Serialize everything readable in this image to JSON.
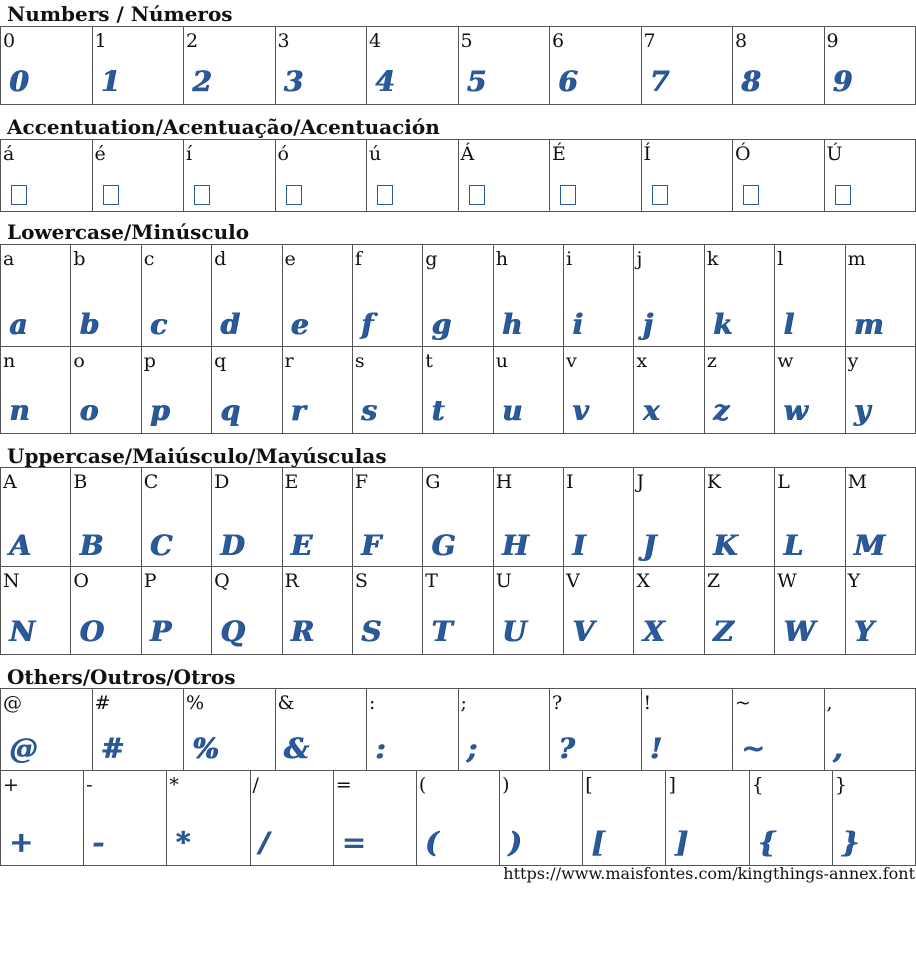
{
  "sections": [
    {
      "title": "Numbers / Números",
      "rows": [
        [
          "0",
          "1",
          "2",
          "3",
          "4",
          "5",
          "6",
          "7",
          "8",
          "9"
        ]
      ]
    },
    {
      "title": "Accentuation/Acentuação/Acentuación",
      "glyph_missing": true,
      "rows": [
        [
          "á",
          "é",
          "í",
          "ó",
          "ú",
          "Á",
          "É",
          "Í",
          "Ó",
          "Ú"
        ]
      ]
    },
    {
      "title": "Lowercase/Minúsculo",
      "rows": [
        [
          "a",
          "b",
          "c",
          "d",
          "e",
          "f",
          "g",
          "h",
          "i",
          "j",
          "k",
          "l",
          "m"
        ],
        [
          "n",
          "o",
          "p",
          "q",
          "r",
          "s",
          "t",
          "u",
          "v",
          "x",
          "z",
          "w",
          "y"
        ]
      ]
    },
    {
      "title": "Uppercase/Maiúsculo/Mayúsculas",
      "rows": [
        [
          "A",
          "B",
          "C",
          "D",
          "E",
          "F",
          "G",
          "H",
          "I",
          "J",
          "K",
          "L",
          "M"
        ],
        [
          "N",
          "O",
          "P",
          "Q",
          "R",
          "S",
          "T",
          "U",
          "V",
          "X",
          "Z",
          "W",
          "Y"
        ]
      ]
    },
    {
      "title": "Others/Outros/Otros",
      "rows": [
        [
          "@",
          "#",
          "%",
          "&",
          ":",
          ";",
          "?",
          "!",
          "~",
          ","
        ],
        [
          "+",
          "-",
          "*",
          "/",
          "=",
          "(",
          ")",
          "[",
          "]",
          "{",
          "}"
        ]
      ]
    }
  ],
  "url": "https://www.maisfontes.com/kingthings-annex.font"
}
